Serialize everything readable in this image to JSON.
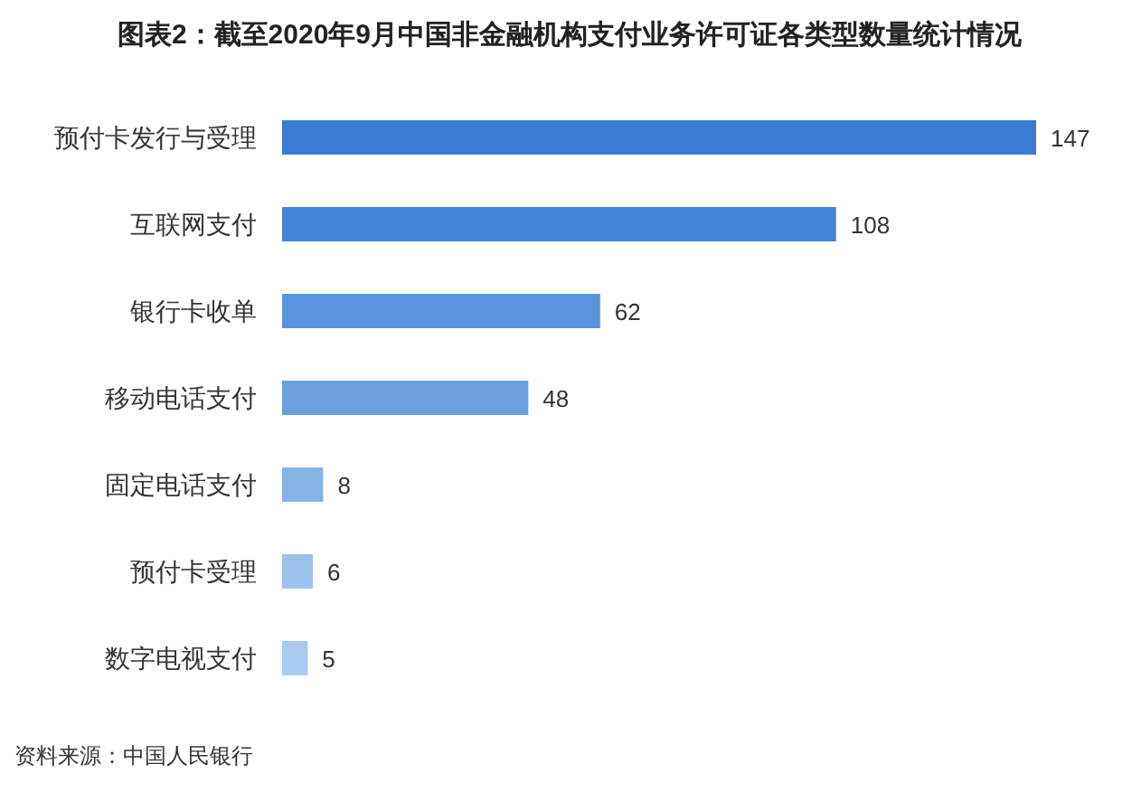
{
  "chart_data": {
    "type": "bar",
    "orientation": "horizontal",
    "title": "图表2：截至2020年9月中国非金融机构支付业务许可证各类型数量统计情况",
    "categories": [
      "预付卡发行与受理",
      "互联网支付",
      "银行卡收单",
      "移动电话支付",
      "固定电话支付",
      "预付卡受理",
      "数字电视支付"
    ],
    "values": [
      147,
      108,
      62,
      48,
      8,
      6,
      5
    ],
    "colors": [
      "#3a7bd5",
      "#4585d8",
      "#5a93db",
      "#6a9fdf",
      "#86b2e6",
      "#9cc1ea",
      "#a9c9ee"
    ],
    "data_labels": true,
    "annotations": [
      "资料来源：中国人民银行"
    ]
  }
}
